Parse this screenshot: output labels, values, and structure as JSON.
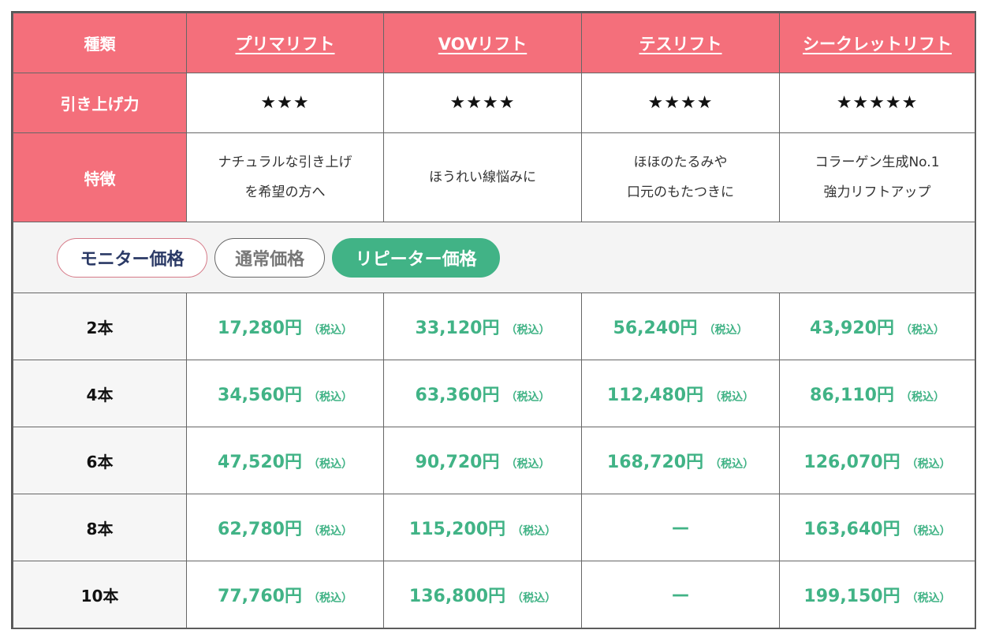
{
  "header": {
    "type_label": "種類",
    "products": [
      "プリマリフト",
      "VOVリフト",
      "テスリフト",
      "シークレットリフト"
    ]
  },
  "lift": {
    "label": "引き上げ力",
    "stars": [
      "★★★",
      "★★★★",
      "★★★★",
      "★★★★★"
    ],
    "star_counts": [
      3,
      4,
      4,
      5
    ]
  },
  "feature": {
    "label": "特徴",
    "lines": [
      [
        "ナチュラルな引き上げ",
        "を希望の方へ"
      ],
      [
        "ほうれい線悩みに"
      ],
      [
        "ほほのたるみや",
        "口元のもたつきに"
      ],
      [
        "コラーゲン生成No.1",
        "強力リフトアップ"
      ]
    ]
  },
  "tabs": {
    "monitor": "モニター価格",
    "normal": "通常価格",
    "repeater": "リピーター価格",
    "active": "repeater"
  },
  "tax_label": "（税込）",
  "rows": [
    {
      "label": "2本",
      "prices": [
        "17,280円",
        "33,120円",
        "56,240円",
        "43,920円"
      ]
    },
    {
      "label": "4本",
      "prices": [
        "34,560円",
        "63,360円",
        "112,480円",
        "86,110円"
      ]
    },
    {
      "label": "6本",
      "prices": [
        "47,520円",
        "90,720円",
        "168,720円",
        "126,070円"
      ]
    },
    {
      "label": "8本",
      "prices": [
        "62,780円",
        "115,200円",
        "—",
        "163,640円"
      ]
    },
    {
      "label": "10本",
      "prices": [
        "77,760円",
        "136,800円",
        "—",
        "199,150円"
      ]
    }
  ],
  "colors": {
    "header_bg": "#f46f7b",
    "price_green": "#41b386",
    "tab_monitor_border": "#d67a88",
    "row_label_bg": "#f6f6f6"
  }
}
